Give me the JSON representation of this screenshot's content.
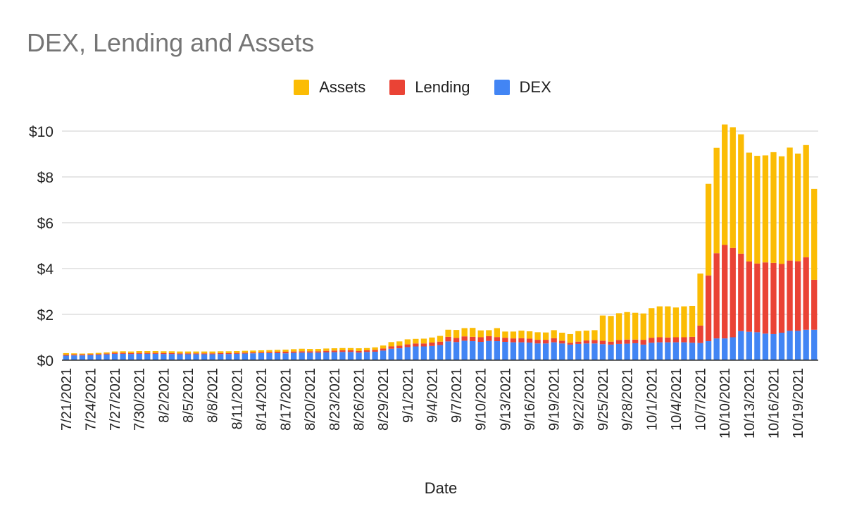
{
  "chart_data": {
    "type": "bar",
    "stacked": true,
    "title": "DEX, Lending and Assets",
    "xlabel": "Date",
    "ylabel": "",
    "ylim": [
      0,
      10
    ],
    "yticks": [
      "$0",
      "$2",
      "$4",
      "$6",
      "$8",
      "$10"
    ],
    "grid": true,
    "legend_position": "top",
    "categories": [
      "7/21/2021",
      "7/22/2021",
      "7/23/2021",
      "7/24/2021",
      "7/25/2021",
      "7/26/2021",
      "7/27/2021",
      "7/28/2021",
      "7/29/2021",
      "7/30/2021",
      "7/31/2021",
      "8/1/2021",
      "8/2/2021",
      "8/3/2021",
      "8/4/2021",
      "8/5/2021",
      "8/6/2021",
      "8/7/2021",
      "8/8/2021",
      "8/9/2021",
      "8/10/2021",
      "8/11/2021",
      "8/12/2021",
      "8/13/2021",
      "8/14/2021",
      "8/15/2021",
      "8/16/2021",
      "8/17/2021",
      "8/18/2021",
      "8/19/2021",
      "8/20/2021",
      "8/21/2021",
      "8/22/2021",
      "8/23/2021",
      "8/24/2021",
      "8/25/2021",
      "8/26/2021",
      "8/27/2021",
      "8/28/2021",
      "8/29/2021",
      "8/30/2021",
      "8/31/2021",
      "9/1/2021",
      "9/2/2021",
      "9/3/2021",
      "9/4/2021",
      "9/5/2021",
      "9/6/2021",
      "9/7/2021",
      "9/8/2021",
      "9/9/2021",
      "9/10/2021",
      "9/11/2021",
      "9/12/2021",
      "9/13/2021",
      "9/14/2021",
      "9/15/2021",
      "9/16/2021",
      "9/17/2021",
      "9/18/2021",
      "9/19/2021",
      "9/20/2021",
      "9/21/2021",
      "9/22/2021",
      "9/23/2021",
      "9/24/2021",
      "9/25/2021",
      "9/26/2021",
      "9/27/2021",
      "9/28/2021",
      "9/29/2021",
      "9/30/2021",
      "10/1/2021",
      "10/2/2021",
      "10/3/2021",
      "10/4/2021",
      "10/5/2021",
      "10/6/2021",
      "10/7/2021",
      "10/8/2021",
      "10/9/2021",
      "10/10/2021",
      "10/11/2021",
      "10/12/2021",
      "10/13/2021",
      "10/14/2021",
      "10/15/2021",
      "10/16/2021",
      "10/17/2021",
      "10/18/2021",
      "10/19/2021",
      "10/20/2021",
      "10/21/2021"
    ],
    "xtick_labels": [
      "7/21/2021",
      "7/24/2021",
      "7/27/2021",
      "7/30/2021",
      "8/2/2021",
      "8/5/2021",
      "8/8/2021",
      "8/11/2021",
      "8/14/2021",
      "8/17/2021",
      "8/20/2021",
      "8/23/2021",
      "8/26/2021",
      "8/29/2021",
      "9/1/2021",
      "9/4/2021",
      "9/7/2021",
      "9/10/2021",
      "9/13/2021",
      "9/16/2021",
      "9/19/2021",
      "9/22/2021",
      "9/25/2021",
      "9/28/2021",
      "10/1/2021",
      "10/4/2021",
      "10/7/2021",
      "10/10/2021",
      "10/13/2021",
      "10/16/2021",
      "10/19/2021"
    ],
    "series": [
      {
        "name": "DEX",
        "color": "#4285f4",
        "values": [
          0.2,
          0.21,
          0.21,
          0.22,
          0.23,
          0.25,
          0.28,
          0.28,
          0.27,
          0.28,
          0.28,
          0.28,
          0.27,
          0.27,
          0.26,
          0.26,
          0.26,
          0.26,
          0.26,
          0.27,
          0.27,
          0.28,
          0.29,
          0.3,
          0.31,
          0.31,
          0.31,
          0.3,
          0.32,
          0.33,
          0.33,
          0.33,
          0.34,
          0.35,
          0.36,
          0.36,
          0.33,
          0.36,
          0.37,
          0.42,
          0.5,
          0.52,
          0.57,
          0.6,
          0.6,
          0.62,
          0.66,
          0.82,
          0.79,
          0.85,
          0.83,
          0.8,
          0.84,
          0.83,
          0.8,
          0.78,
          0.78,
          0.77,
          0.73,
          0.73,
          0.78,
          0.73,
          0.68,
          0.71,
          0.73,
          0.73,
          0.7,
          0.68,
          0.71,
          0.72,
          0.74,
          0.68,
          0.76,
          0.78,
          0.78,
          0.78,
          0.78,
          0.76,
          0.75,
          0.83,
          0.95,
          0.95,
          1.0,
          1.27,
          1.24,
          1.22,
          1.16,
          1.14,
          1.2,
          1.28,
          1.28,
          1.33,
          1.33
        ]
      },
      {
        "name": "Lending",
        "color": "#ea4335",
        "values": [
          0.04,
          0.04,
          0.04,
          0.04,
          0.04,
          0.04,
          0.04,
          0.04,
          0.04,
          0.04,
          0.04,
          0.04,
          0.04,
          0.04,
          0.04,
          0.04,
          0.04,
          0.04,
          0.04,
          0.04,
          0.04,
          0.04,
          0.04,
          0.04,
          0.04,
          0.05,
          0.06,
          0.07,
          0.06,
          0.06,
          0.06,
          0.06,
          0.07,
          0.07,
          0.07,
          0.07,
          0.07,
          0.07,
          0.08,
          0.09,
          0.1,
          0.11,
          0.12,
          0.13,
          0.13,
          0.15,
          0.15,
          0.2,
          0.18,
          0.19,
          0.19,
          0.2,
          0.21,
          0.18,
          0.18,
          0.17,
          0.18,
          0.17,
          0.16,
          0.16,
          0.18,
          0.12,
          0.08,
          0.1,
          0.13,
          0.15,
          0.15,
          0.13,
          0.17,
          0.18,
          0.16,
          0.21,
          0.22,
          0.22,
          0.21,
          0.22,
          0.22,
          0.26,
          0.76,
          2.87,
          3.72,
          4.08,
          3.9,
          3.38,
          3.07,
          3.0,
          3.11,
          3.11,
          3.0,
          3.07,
          3.04,
          3.16,
          2.18
        ]
      },
      {
        "name": "Assets",
        "color": "#fbbc04",
        "values": [
          0.07,
          0.05,
          0.04,
          0.04,
          0.05,
          0.05,
          0.06,
          0.07,
          0.07,
          0.08,
          0.08,
          0.08,
          0.08,
          0.08,
          0.08,
          0.08,
          0.08,
          0.08,
          0.08,
          0.08,
          0.08,
          0.08,
          0.08,
          0.08,
          0.08,
          0.08,
          0.08,
          0.09,
          0.1,
          0.11,
          0.1,
          0.1,
          0.1,
          0.1,
          0.1,
          0.1,
          0.12,
          0.1,
          0.11,
          0.13,
          0.19,
          0.19,
          0.22,
          0.2,
          0.21,
          0.22,
          0.25,
          0.31,
          0.35,
          0.36,
          0.39,
          0.3,
          0.26,
          0.39,
          0.27,
          0.3,
          0.33,
          0.32,
          0.33,
          0.32,
          0.35,
          0.35,
          0.38,
          0.46,
          0.43,
          0.43,
          1.1,
          1.12,
          1.17,
          1.2,
          1.17,
          1.15,
          1.29,
          1.35,
          1.36,
          1.3,
          1.35,
          1.35,
          2.27,
          4.0,
          4.6,
          5.26,
          5.27,
          5.21,
          4.75,
          4.7,
          4.67,
          4.83,
          4.7,
          4.93,
          4.7,
          4.9,
          3.97
        ]
      }
    ]
  }
}
